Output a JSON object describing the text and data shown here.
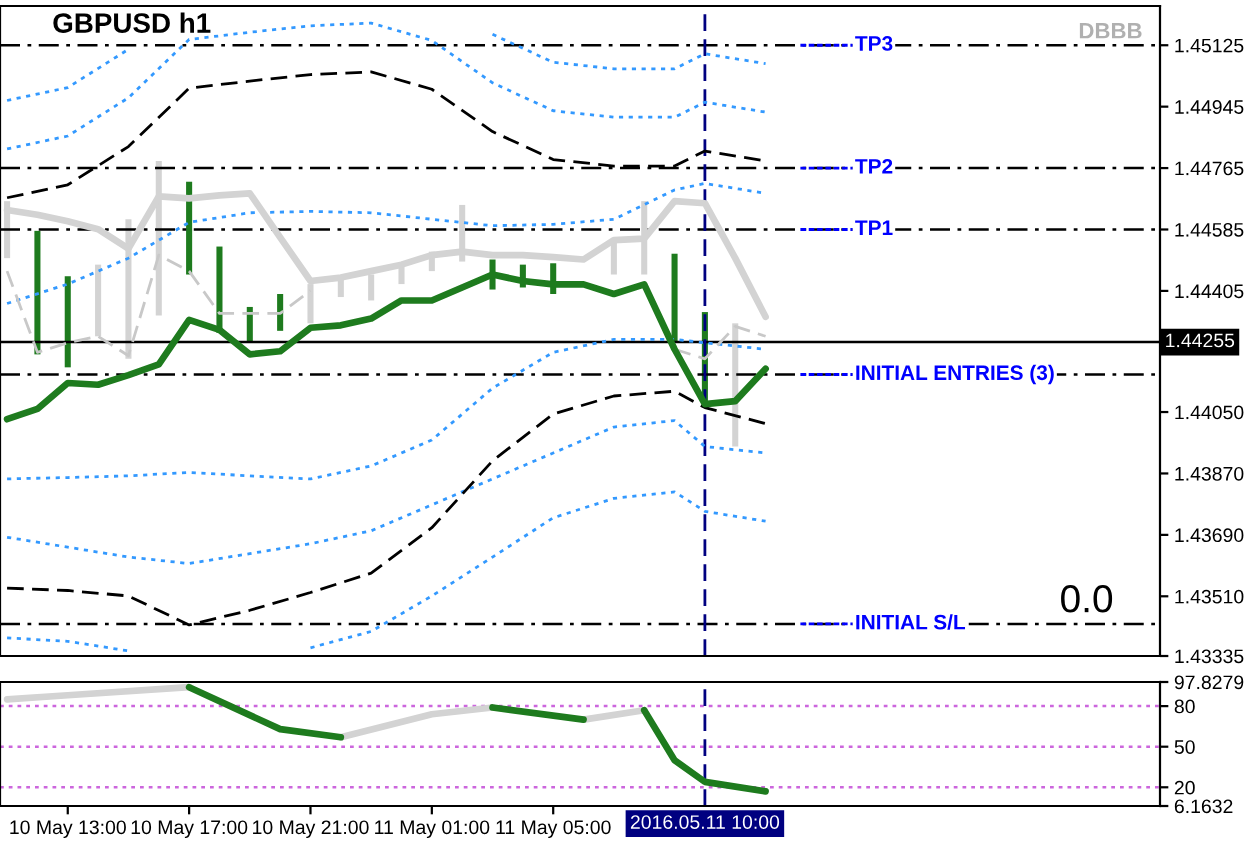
{
  "chart_data": [
    {
      "type": "line",
      "title": "GBPUSD h1",
      "tick_labels": "y",
      "xlim": [
        "2016-05-10T10:46",
        "2016-05-12T01:00"
      ],
      "ylim": [
        1.43335,
        1.4524
      ],
      "yticks": [
        1.45125,
        1.44945,
        1.44765,
        1.44585,
        1.44405,
        {
          "value": 1.4405,
          "label": "1.44050"
        },
        {
          "value": 1.4387,
          "label": "1.43870"
        },
        {
          "value": 1.4369,
          "label": "1.43690"
        },
        {
          "value": 1.4351,
          "label": "1.43510"
        },
        1.43335
      ],
      "series": [
        {
          "color": "#3399ff",
          "line_style": "dotted",
          "x": [
            "2016-05-10T11:00",
            "2016-05-10T13:00",
            "2016-05-10T15:00",
            "2016-05-10T17:00",
            "2016-05-10T19:00",
            "2016-05-10T21:00",
            "2016-05-10T23:00",
            "2016-05-11T01:00",
            "2016-05-11T03:00",
            "2016-05-11T05:00",
            "2016-05-11T07:00",
            "2016-05-11T09:00",
            "2016-05-11T10:00",
            "2016-05-11T12:00"
          ],
          "values": [
            1.44963,
            1.45001,
            1.45113,
            null,
            null,
            null,
            null,
            null,
            1.45157,
            1.45075,
            1.45056,
            1.45056,
            1.451,
            1.45071
          ]
        },
        {
          "color": "#3399ff",
          "line_style": "dotted",
          "x": [
            "2016-05-10T11:00",
            "2016-05-10T13:00",
            "2016-05-10T15:00",
            "2016-05-10T17:00",
            "2016-05-10T19:00",
            "2016-05-10T21:00",
            "2016-05-10T23:00",
            "2016-05-11T01:00",
            "2016-05-11T03:00",
            "2016-05-11T05:00",
            "2016-05-11T07:00",
            "2016-05-11T09:00",
            "2016-05-11T10:00",
            "2016-05-11T12:00"
          ],
          "values": [
            1.44821,
            1.44859,
            1.44971,
            1.45142,
            1.45163,
            1.45182,
            1.4519,
            1.45139,
            1.45015,
            1.44933,
            1.44914,
            1.44914,
            1.44958,
            1.44929
          ]
        },
        {
          "color": "#3399ff",
          "line_style": "dotted",
          "x": [
            "2016-05-10T11:00",
            "2016-05-10T13:00",
            "2016-05-10T15:00",
            "2016-05-10T17:00",
            "2016-05-10T19:00",
            "2016-05-10T21:00",
            "2016-05-10T23:00",
            "2016-05-11T01:00",
            "2016-05-11T03:00",
            "2016-05-11T05:00",
            "2016-05-11T07:00",
            "2016-05-11T09:00",
            "2016-05-11T10:00",
            "2016-05-11T12:00"
          ],
          "values": [
            1.44368,
            1.44425,
            1.44501,
            1.44606,
            1.44634,
            1.44638,
            1.44634,
            1.44615,
            1.44596,
            1.446,
            1.44615,
            1.44701,
            1.4472,
            1.44691
          ]
        },
        {
          "color": "#3399ff",
          "line_style": "dotted",
          "x": [
            "2016-05-10T11:00",
            "2016-05-10T13:00",
            "2016-05-10T15:00",
            "2016-05-10T17:00",
            "2016-05-10T19:00",
            "2016-05-10T21:00",
            "2016-05-10T23:00",
            "2016-05-11T01:00",
            "2016-05-11T03:00",
            "2016-05-11T05:00",
            "2016-05-11T07:00",
            "2016-05-11T09:00",
            "2016-05-11T10:00",
            "2016-05-11T12:00"
          ],
          "values": [
            1.43854,
            1.43858,
            1.43863,
            1.43873,
            1.43863,
            1.43854,
            1.43892,
            1.43968,
            1.4412,
            1.44225,
            1.44263,
            1.44263,
            1.44253,
            1.44234
          ]
        },
        {
          "color": "#3399ff",
          "line_style": "dotted",
          "x": [
            "2016-05-10T11:00",
            "2016-05-10T13:00",
            "2016-05-10T15:00",
            "2016-05-10T17:00",
            "2016-05-10T19:00",
            "2016-05-10T21:00",
            "2016-05-10T23:00",
            "2016-05-11T01:00",
            "2016-05-11T03:00",
            "2016-05-11T05:00",
            "2016-05-11T07:00",
            "2016-05-11T09:00",
            "2016-05-11T10:00",
            "2016-05-11T12:00"
          ],
          "values": [
            1.43683,
            1.43654,
            1.43625,
            1.43606,
            1.43635,
            1.43664,
            1.43702,
            1.43778,
            1.43854,
            1.4393,
            1.44006,
            1.44025,
            1.43949,
            1.4393
          ]
        },
        {
          "color": "#3399ff",
          "line_style": "dotted",
          "x": [
            "2016-05-10T11:00",
            "2016-05-10T13:00",
            "2016-05-10T15:00",
            "2016-05-10T17:00",
            "2016-05-10T19:00",
            "2016-05-10T21:00",
            "2016-05-10T23:00",
            "2016-05-11T01:00",
            "2016-05-11T03:00",
            "2016-05-11T05:00",
            "2016-05-11T07:00",
            "2016-05-11T09:00",
            "2016-05-11T10:00",
            "2016-05-11T12:00"
          ],
          "values": [
            1.43388,
            1.43378,
            1.4335,
            null,
            null,
            1.43359,
            1.43407,
            1.43511,
            1.43625,
            1.4374,
            1.43797,
            1.43816,
            1.43759,
            1.4373
          ]
        },
        {
          "color": "#000000",
          "line_style": "dashed",
          "x": [
            "2016-05-10T11:00",
            "2016-05-10T13:00",
            "2016-05-10T15:00",
            "2016-05-10T17:00",
            "2016-05-10T19:00",
            "2016-05-10T21:00",
            "2016-05-10T23:00",
            "2016-05-11T01:00",
            "2016-05-11T03:00",
            "2016-05-11T05:00",
            "2016-05-11T07:00",
            "2016-05-11T09:00",
            "2016-05-11T10:00",
            "2016-05-11T12:00"
          ],
          "values": [
            1.44678,
            1.44716,
            1.44828,
            1.44999,
            1.4502,
            1.45039,
            1.45047,
            1.44996,
            1.44872,
            1.4479,
            1.44771,
            1.44771,
            1.44815,
            1.44786
          ]
        },
        {
          "color": "#000000",
          "line_style": "dashed",
          "x": [
            "2016-05-10T11:00",
            "2016-05-10T13:00",
            "2016-05-10T15:00",
            "2016-05-10T17:00",
            "2016-05-10T19:00",
            "2016-05-10T21:00",
            "2016-05-10T23:00",
            "2016-05-11T01:00",
            "2016-05-11T03:00",
            "2016-05-11T05:00",
            "2016-05-11T07:00",
            "2016-05-11T09:00",
            "2016-05-11T10:00",
            "2016-05-11T12:00"
          ],
          "values": [
            1.43534,
            1.43527,
            1.43511,
            1.43426,
            1.43469,
            1.43521,
            1.43578,
            1.43711,
            1.43907,
            1.44044,
            1.44097,
            1.44111,
            1.44063,
            1.44016
          ]
        },
        {
          "color": "#c8c8c8",
          "line_style": "dashed",
          "x": [
            "2016-05-10T11:00",
            "2016-05-10T12:00",
            "2016-05-10T13:00",
            "2016-05-10T14:00",
            "2016-05-10T15:00",
            "2016-05-10T16:00",
            "2016-05-10T17:00",
            "2016-05-10T18:00",
            "2016-05-10T19:00",
            "2016-05-10T20:00",
            "2016-05-10T21:00",
            "2016-05-10T22:00",
            "2016-05-11T09:00",
            "2016-05-11T10:00",
            "2016-05-11T11:00",
            "2016-05-11T12:00"
          ],
          "values": [
            1.44463,
            1.44225,
            1.44253,
            1.44272,
            1.44215,
            1.4451,
            1.44463,
            1.44339,
            1.44339,
            1.44339,
            1.44406,
            null,
            1.44234,
            1.44206,
            1.44301,
            1.44272
          ]
        },
        {
          "color": "#d3d3d3",
          "line_style": "solid",
          "x": [
            "2016-05-10T11:00",
            "2016-05-10T12:00",
            "2016-05-10T13:00",
            "2016-05-10T14:00",
            "2016-05-10T15:00",
            "2016-05-10T16:00",
            "2016-05-10T17:00",
            "2016-05-10T18:00",
            "2016-05-10T19:00",
            "2016-05-10T20:00",
            "2016-05-10T21:00",
            "2016-05-10T22:00",
            "2016-05-10T23:00",
            "2016-05-11T00:00",
            "2016-05-11T01:00",
            "2016-05-11T02:00",
            "2016-05-11T03:00",
            "2016-05-11T04:00",
            "2016-05-11T05:00",
            "2016-05-11T06:00",
            "2016-05-11T07:00",
            "2016-05-11T08:00",
            "2016-05-11T09:00",
            "2016-05-11T10:00",
            "2016-05-11T11:00",
            "2016-05-11T12:00"
          ],
          "values": [
            1.44642,
            1.44628,
            1.44609,
            1.44586,
            1.44529,
            1.44682,
            1.44676,
            1.44685,
            1.44691,
            1.44562,
            1.44434,
            1.44444,
            1.44463,
            1.44482,
            1.4451,
            1.4452,
            1.4451,
            1.4451,
            1.44504,
            1.44497,
            1.44554,
            1.44558,
            1.44668,
            1.44662,
            1.44501,
            1.44329
          ]
        },
        {
          "type": "bar",
          "color": "#d3d3d3",
          "x": [
            "2016-05-10T11:00",
            "2016-05-10T14:00",
            "2016-05-10T15:00",
            "2016-05-10T16:00",
            "2016-05-10T21:00",
            "2016-05-10T22:00",
            "2016-05-10T23:00",
            "2016-05-11T00:00",
            "2016-05-11T01:00",
            "2016-05-11T02:00",
            "2016-05-11T07:00",
            "2016-05-11T08:00",
            "2016-05-11T11:00"
          ],
          "base": [
            1.44501,
            1.44272,
            1.44206,
            1.44333,
            1.4431,
            1.44387,
            1.44377,
            1.44425,
            1.44463,
            1.44491,
            1.44453,
            1.44453,
            1.43949
          ],
          "values": [
            0.00167,
            0.0021,
            0.00409,
            0.00453,
            0.00115,
            0.00057,
            0.00076,
            0.00057,
            0.00057,
            0.00166,
            0.00095,
            0.00215,
            0.00361
          ]
        },
        {
          "type": "bar",
          "color": "#1e7b1e",
          "x": [
            "2016-05-10T12:00",
            "2016-05-10T13:00",
            "2016-05-10T17:00",
            "2016-05-10T18:00",
            "2016-05-10T19:00",
            "2016-05-10T20:00",
            "2016-05-11T03:00",
            "2016-05-11T04:00",
            "2016-05-11T05:00",
            "2016-05-11T09:00",
            "2016-05-11T10:00"
          ],
          "base": [
            1.44219,
            1.44181,
            1.44453,
            1.44282,
            1.44253,
            1.44288,
            1.44409,
            1.44415,
            1.44396,
            1.44253,
            1.44073
          ],
          "values": [
            0.00362,
            0.00267,
            0.00272,
            0.00253,
            0.00105,
            0.00108,
            0.00088,
            0.00067,
            0.0009,
            0.00261,
            0.0027
          ]
        },
        {
          "color": "#1e7b1e",
          "line_style": "solid",
          "x": [
            "2016-05-10T11:00",
            "2016-05-10T12:00",
            "2016-05-10T13:00",
            "2016-05-10T14:00",
            "2016-05-10T15:00",
            "2016-05-10T16:00",
            "2016-05-10T17:00",
            "2016-05-10T18:00",
            "2016-05-10T19:00",
            "2016-05-10T20:00",
            "2016-05-10T21:00",
            "2016-05-10T22:00",
            "2016-05-10T23:00",
            "2016-05-11T00:00",
            "2016-05-11T01:00",
            "2016-05-11T02:00",
            "2016-05-11T03:00",
            "2016-05-11T04:00",
            "2016-05-11T05:00",
            "2016-05-11T06:00",
            "2016-05-11T07:00",
            "2016-05-11T08:00",
            "2016-05-11T09:00",
            "2016-05-11T10:00",
            "2016-05-11T11:00",
            "2016-05-11T12:00"
          ],
          "values": [
            1.44029,
            1.44059,
            1.44135,
            1.4413,
            1.44158,
            1.4419,
            1.4432,
            1.44291,
            1.44219,
            1.44228,
            1.44297,
            1.44304,
            1.44324,
            1.44377,
            1.44377,
            1.44415,
            1.44453,
            1.44434,
            1.44424,
            1.44424,
            1.44396,
            1.44424,
            1.44234,
            1.44073,
            1.44082,
            1.44177
          ]
        }
      ],
      "ref_lines": [
        {
          "axis": "y",
          "value": 1.45125,
          "label": "TP3",
          "color": "#000000",
          "line_style": "dashdot"
        },
        {
          "axis": "y",
          "value": 1.44765,
          "label": "TP2",
          "color": "#000000",
          "line_style": "dashdot"
        },
        {
          "axis": "y",
          "value": 1.44585,
          "label": "TP1",
          "color": "#000000",
          "line_style": "dashdot"
        },
        {
          "axis": "y",
          "value": 1.4416,
          "label": "INITIAL ENTRIES (3)",
          "color": "#000000",
          "line_style": "dashdot"
        },
        {
          "axis": "y",
          "value": 1.43429,
          "label": "INITIAL S/L",
          "color": "#000000",
          "line_style": "dashdot"
        },
        {
          "axis": "y",
          "value": 1.44255,
          "label": "1.44255",
          "color": "#000000",
          "line_style": "solid"
        },
        {
          "axis": "x",
          "value": "2016-05-11T10:00",
          "color": "#000080",
          "line_style": "dashed"
        }
      ],
      "annotations": [
        "DBBB",
        "0.0"
      ]
    },
    {
      "type": "line",
      "xlim": [
        "2016-05-10T10:46",
        "2016-05-12T01:00"
      ],
      "ylim": [
        6.1632,
        97.8279
      ],
      "xticks": [
        {
          "value": "2016-05-10T13:00",
          "label": "10 May 13:00"
        },
        {
          "value": "2016-05-10T17:00",
          "label": "10 May 17:00"
        },
        {
          "value": "2016-05-10T21:00",
          "label": "10 May 21:00"
        },
        {
          "value": "2016-05-11T01:00",
          "label": "11 May 01:00"
        },
        {
          "value": "2016-05-11T05:00",
          "label": "11 May 05:00"
        }
      ],
      "yticks": [
        97.8279,
        80,
        50,
        20,
        6.1632
      ],
      "series": [
        {
          "color": "#d3d3d3",
          "line_style": "solid",
          "x": [
            "2016-05-10T11:00",
            "2016-05-10T13:00",
            "2016-05-10T17:00",
            "2016-05-10T18:00",
            "2016-05-10T22:00",
            "2016-05-11T01:00",
            "2016-05-11T03:00",
            "2016-05-11T04:00",
            "2016-05-11T06:00",
            "2016-05-11T08:00"
          ],
          "values": [
            85,
            88,
            94,
            null,
            57,
            74,
            79,
            null,
            70,
            77
          ]
        },
        {
          "color": "#1e7b1e",
          "line_style": "solid",
          "x": [
            "2016-05-10T17:00",
            "2016-05-10T20:00",
            "2016-05-10T22:00",
            "2016-05-10T23:00",
            "2016-05-11T03:00",
            "2016-05-11T06:00",
            "2016-05-11T07:00",
            "2016-05-11T08:00",
            "2016-05-11T09:00",
            "2016-05-11T10:00",
            "2016-05-11T12:00"
          ],
          "values": [
            94,
            63,
            57,
            null,
            79,
            70,
            null,
            77,
            40,
            24,
            17
          ]
        }
      ],
      "ref_lines": [
        {
          "axis": "y",
          "value": 80,
          "color": "#cc66dd",
          "line_style": "dotted"
        },
        {
          "axis": "y",
          "value": 50,
          "color": "#cc66dd",
          "line_style": "dotted"
        },
        {
          "axis": "y",
          "value": 20,
          "color": "#cc66dd",
          "line_style": "dotted"
        },
        {
          "axis": "x",
          "value": "2016-05-11T10:00",
          "label": "2016.05.11 10:00",
          "color": "#000080",
          "line_style": "dashed"
        }
      ]
    }
  ]
}
